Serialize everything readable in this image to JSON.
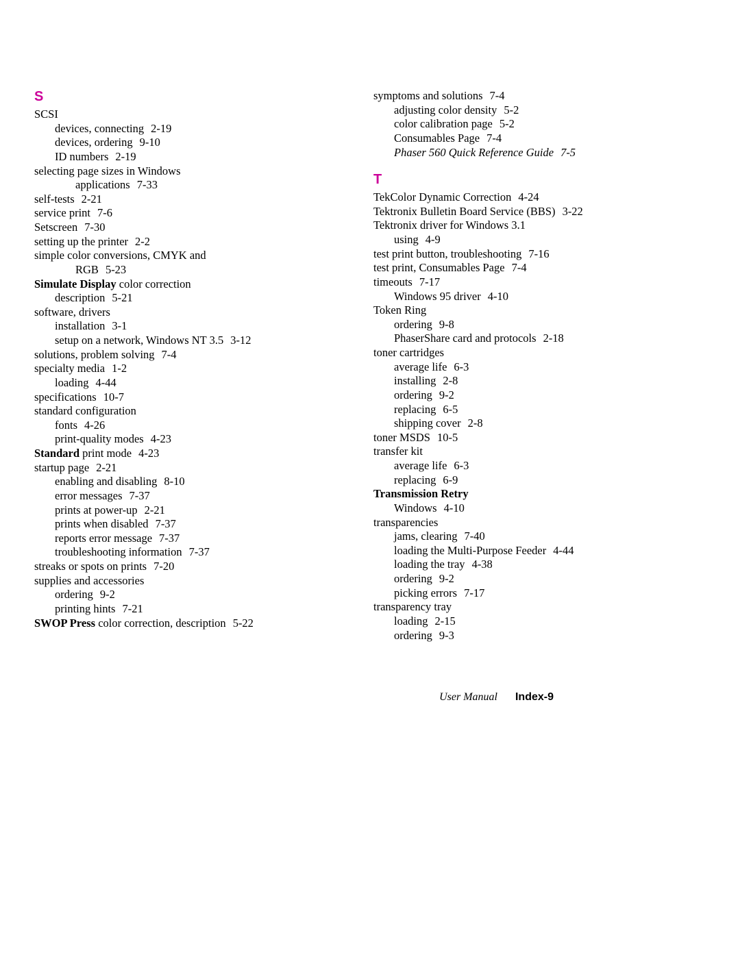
{
  "footer": {
    "user_manual": "User Manual",
    "index": "Index-9"
  },
  "left": {
    "letter": "S",
    "entries": [
      {
        "indent": 0,
        "text": "SCSI"
      },
      {
        "indent": 1,
        "text": "devices, connecting",
        "page": "2-19"
      },
      {
        "indent": 1,
        "text": "devices, ordering",
        "page": "9-10"
      },
      {
        "indent": 1,
        "text": "ID numbers",
        "page": "2-19"
      },
      {
        "indent": 0,
        "text": "selecting page sizes in Windows"
      },
      {
        "indent": 2,
        "text": "applications",
        "page": "7-33"
      },
      {
        "indent": 0,
        "text": "self-tests",
        "page": "2-21"
      },
      {
        "indent": 0,
        "text": "service print",
        "page": "7-6"
      },
      {
        "indent": 0,
        "text": "Setscreen",
        "page": "7-30"
      },
      {
        "indent": 0,
        "text": "setting up the printer",
        "page": "2-2"
      },
      {
        "indent": 0,
        "text": "simple color conversions, CMYK and"
      },
      {
        "indent": 2,
        "text": "RGB",
        "page": "5-23"
      },
      {
        "indent": 0,
        "boldPrefix": "Simulate Display",
        "text": " color correction"
      },
      {
        "indent": 1,
        "text": "description",
        "page": "5-21"
      },
      {
        "indent": 0,
        "text": "software, drivers"
      },
      {
        "indent": 1,
        "text": "installation",
        "page": "3-1"
      },
      {
        "indent": 1,
        "text": "setup on a network, Windows NT 3.5",
        "page": "3-12"
      },
      {
        "indent": 0,
        "text": "solutions, problem solving",
        "page": "7-4"
      },
      {
        "indent": 0,
        "text": "specialty media",
        "page": "1-2"
      },
      {
        "indent": 1,
        "text": "loading",
        "page": "4-44"
      },
      {
        "indent": 0,
        "text": "specifications",
        "page": "10-7"
      },
      {
        "indent": 0,
        "text": "standard configuration"
      },
      {
        "indent": 1,
        "text": "fonts",
        "page": "4-26"
      },
      {
        "indent": 1,
        "text": "print-quality modes",
        "page": "4-23"
      },
      {
        "indent": 0,
        "boldPrefix": "Standard",
        "text": " print mode",
        "page": "4-23"
      },
      {
        "indent": 0,
        "text": "startup page",
        "page": "2-21"
      },
      {
        "indent": 1,
        "text": "enabling and disabling",
        "page": "8-10"
      },
      {
        "indent": 1,
        "text": "error messages",
        "page": "7-37"
      },
      {
        "indent": 1,
        "text": "prints at power-up",
        "page": "2-21"
      },
      {
        "indent": 1,
        "text": "prints when disabled",
        "page": "7-37"
      },
      {
        "indent": 1,
        "text": "reports error message",
        "page": "7-37"
      },
      {
        "indent": 1,
        "text": "troubleshooting information",
        "page": "7-37"
      },
      {
        "indent": 0,
        "text": "streaks or spots on prints",
        "page": "7-20"
      },
      {
        "indent": 0,
        "text": "supplies and accessories"
      },
      {
        "indent": 1,
        "text": "ordering",
        "page": "9-2"
      },
      {
        "indent": 1,
        "text": "printing hints",
        "page": "7-21"
      },
      {
        "indent": 0,
        "boldPrefix": "SWOP Press",
        "text": " color correction, description",
        "page": "5-22"
      }
    ]
  },
  "right_top": {
    "entries": [
      {
        "indent": 0,
        "text": "symptoms and solutions",
        "page": "7-4"
      },
      {
        "indent": 1,
        "text": "adjusting color density",
        "page": "5-2"
      },
      {
        "indent": 1,
        "text": "color calibration page",
        "page": "5-2"
      },
      {
        "indent": 1,
        "text": "Consumables Page",
        "page": "7-4"
      },
      {
        "indent": 1,
        "italic": true,
        "text": "Phaser 560 Quick Reference Guide",
        "page": "7-5"
      }
    ]
  },
  "right_t": {
    "letter": "T",
    "entries": [
      {
        "indent": 0,
        "text": "TekColor Dynamic Correction",
        "page": "4-24"
      },
      {
        "indent": 0,
        "text": "Tektronix Bulletin Board Service (BBS)",
        "page": "3-22"
      },
      {
        "indent": 0,
        "text": "Tektronix driver for Windows 3.1"
      },
      {
        "indent": 1,
        "text": "using",
        "page": "4-9"
      },
      {
        "indent": 0,
        "text": "test print button, troubleshooting",
        "page": "7-16"
      },
      {
        "indent": 0,
        "text": "test print, Consumables Page",
        "page": "7-4"
      },
      {
        "indent": 0,
        "text": "timeouts",
        "page": "7-17"
      },
      {
        "indent": 1,
        "text": "Windows 95 driver",
        "page": "4-10"
      },
      {
        "indent": 0,
        "text": "Token Ring"
      },
      {
        "indent": 1,
        "text": "ordering",
        "page": "9-8"
      },
      {
        "indent": 1,
        "text": "PhaserShare card and protocols",
        "page": "2-18"
      },
      {
        "indent": 0,
        "text": "toner cartridges"
      },
      {
        "indent": 1,
        "text": "average life",
        "page": "6-3"
      },
      {
        "indent": 1,
        "text": "installing",
        "page": "2-8"
      },
      {
        "indent": 1,
        "text": "ordering",
        "page": "9-2"
      },
      {
        "indent": 1,
        "text": "replacing",
        "page": "6-5"
      },
      {
        "indent": 1,
        "text": "shipping cover",
        "page": "2-8"
      },
      {
        "indent": 0,
        "text": "toner MSDS",
        "page": "10-5"
      },
      {
        "indent": 0,
        "text": "transfer kit"
      },
      {
        "indent": 1,
        "text": "average life",
        "page": "6-3"
      },
      {
        "indent": 1,
        "text": "replacing",
        "page": "6-9"
      },
      {
        "indent": 0,
        "boldPrefix": "Transmission Retry",
        "text": ""
      },
      {
        "indent": 1,
        "text": "Windows",
        "page": "4-10"
      },
      {
        "indent": 0,
        "text": "transparencies"
      },
      {
        "indent": 1,
        "text": "jams, clearing",
        "page": "7-40"
      },
      {
        "indent": 1,
        "text": "loading the Multi-Purpose Feeder",
        "page": "4-44"
      },
      {
        "indent": 1,
        "text": "loading the tray",
        "page": "4-38"
      },
      {
        "indent": 1,
        "text": "ordering",
        "page": "9-2"
      },
      {
        "indent": 1,
        "text": "picking errors",
        "page": "7-17"
      },
      {
        "indent": 0,
        "text": "transparency tray"
      },
      {
        "indent": 1,
        "text": "loading",
        "page": "2-15"
      },
      {
        "indent": 1,
        "text": "ordering",
        "page": "9-3"
      }
    ]
  }
}
